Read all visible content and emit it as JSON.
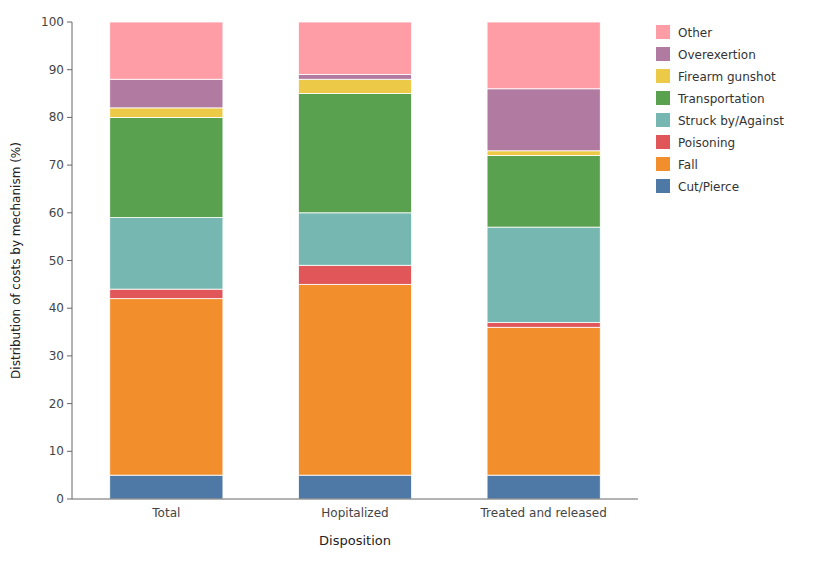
{
  "chart_data": {
    "type": "bar",
    "stacked": true,
    "categories": [
      "Total",
      "Hopitalized",
      "Treated and released"
    ],
    "series": [
      {
        "name": "Cut/Pierce",
        "values": [
          5,
          5,
          5
        ]
      },
      {
        "name": "Fall",
        "values": [
          37,
          40,
          31
        ]
      },
      {
        "name": "Poisoning",
        "values": [
          2,
          4,
          1
        ]
      },
      {
        "name": "Struck by/Against",
        "values": [
          15,
          11,
          20
        ]
      },
      {
        "name": "Transportation",
        "values": [
          21,
          25,
          15
        ]
      },
      {
        "name": "Firearm gunshot",
        "values": [
          2,
          3,
          1
        ]
      },
      {
        "name": "Overexertion",
        "values": [
          6,
          1,
          13
        ]
      },
      {
        "name": "Other",
        "values": [
          12,
          11,
          14
        ]
      }
    ],
    "xlabel": "Disposition",
    "ylabel": "Distribution of costs by mechanism (%)",
    "ylim": [
      0,
      100
    ],
    "yticks": [
      0,
      10,
      20,
      30,
      40,
      50,
      60,
      70,
      80,
      90,
      100
    ],
    "grid": false,
    "legend": "upper right"
  }
}
